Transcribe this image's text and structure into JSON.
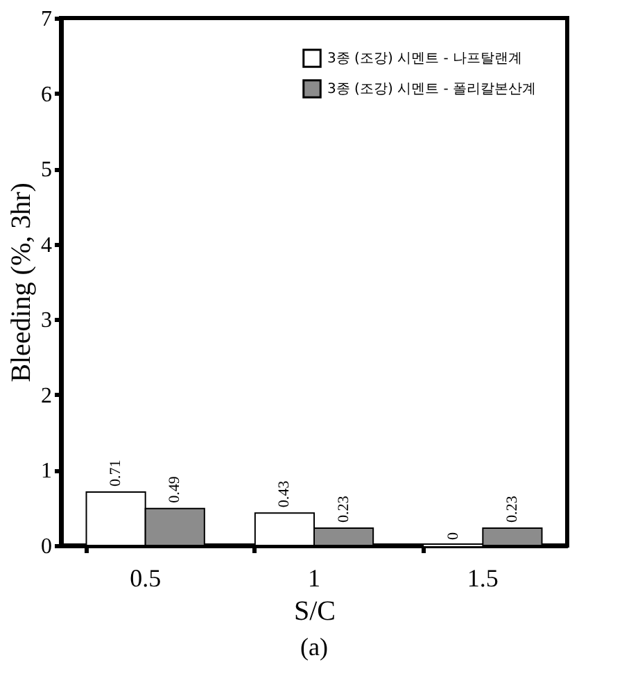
{
  "chart_data": {
    "type": "bar",
    "xlabel": "S/C",
    "ylabel": "Bleeding (%, 3hr)",
    "categories": [
      "0.5",
      "1",
      "1.5"
    ],
    "series": [
      {
        "name": "3종 (조강) 시멘트 - 나프탈랜계",
        "color": "#ffffff",
        "values": [
          0.71,
          0.43,
          0
        ]
      },
      {
        "name": "3종 (조강) 시멘트 - 폴리칼본산계",
        "color": "#8c8c8c",
        "values": [
          0.49,
          0.23,
          0.23
        ]
      }
    ],
    "ylim": [
      0,
      7
    ],
    "yticks": [
      0,
      1,
      2,
      3,
      4,
      5,
      6,
      7
    ],
    "grid": false,
    "legend": "top right",
    "data_labels": true,
    "annotations": [
      "(a)"
    ]
  }
}
